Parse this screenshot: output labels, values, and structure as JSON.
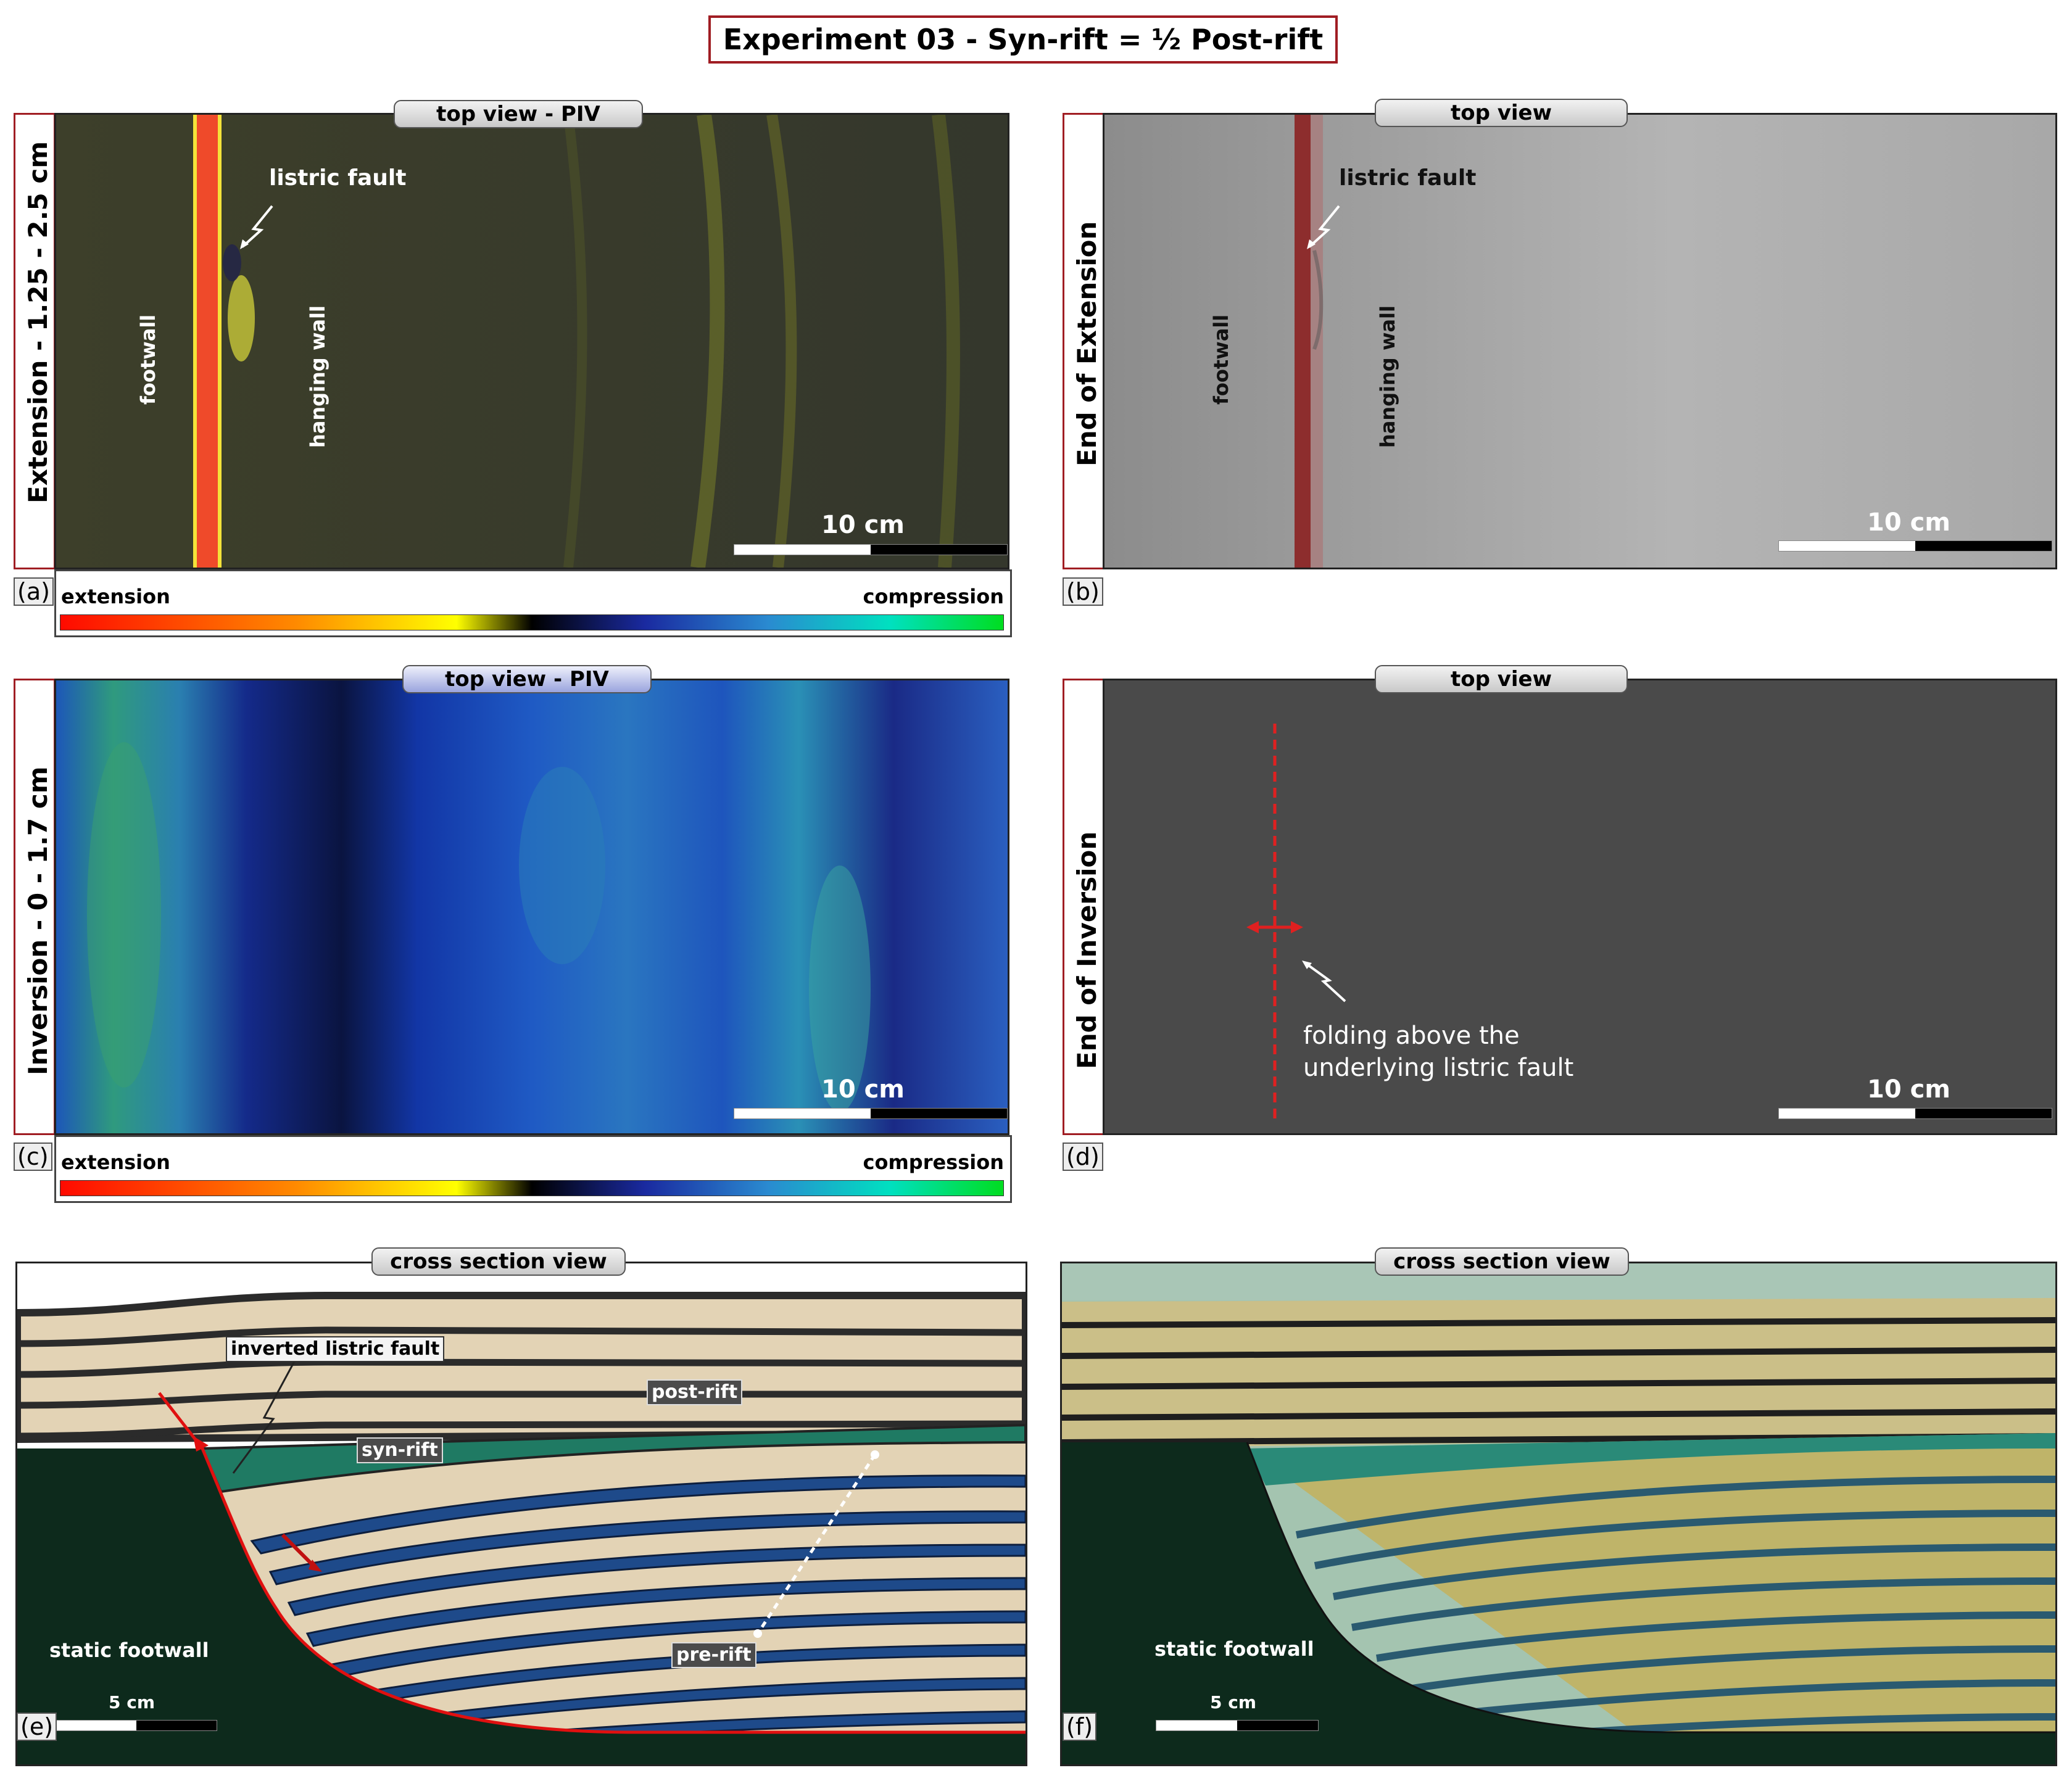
{
  "figure_title": "Experiment 03 - Syn-rift = ½  Post-rift",
  "panels": {
    "a": {
      "letter": "(a)",
      "side_label": "Extension - 1.25 - 2.5 cm",
      "pill": "top view - PIV",
      "fault_label": "listric fault",
      "footwall_label": "footwall",
      "hanging_label": "hanging wall",
      "scale_label": "10 cm",
      "cbar_left": "extension",
      "cbar_right": "compression"
    },
    "b": {
      "letter": "(b)",
      "side_label": "End of Extension",
      "pill": "top view",
      "fault_label": "listric fault",
      "footwall_label": "footwall",
      "hanging_label": "hanging wall",
      "scale_label": "10 cm"
    },
    "c": {
      "letter": "(c)",
      "side_label": "Inversion - 0 - 1.7 cm",
      "pill": "top view - PIV",
      "scale_label": "10 cm",
      "cbar_left": "extension",
      "cbar_right": "compression"
    },
    "d": {
      "letter": "(d)",
      "side_label": "End of Inversion",
      "pill": "top view",
      "annotation_line1": "folding above the",
      "annotation_line2": "underlying listric fault",
      "scale_label": "10 cm"
    },
    "e": {
      "letter": "(e)",
      "pill": "cross section view",
      "fault_tag": "inverted listric fault",
      "postrift_tag": "post-rift",
      "synrift_tag": "syn-rift",
      "prerift_tag": "pre-rift",
      "footwall_label": "static footwall",
      "scale_label": "5 cm"
    },
    "f": {
      "letter": "(f)",
      "pill": "cross section view",
      "footwall_label": "static footwall",
      "scale_label": "5 cm"
    }
  },
  "colors": {
    "frame_red": "#a01d23",
    "footwall_green": "#0d2a1c",
    "synrift_green": "#1f7a63",
    "prerift_blue": "#1e4a8a",
    "sand_beige": "#e3d3b5",
    "fault_red": "#e01010"
  }
}
